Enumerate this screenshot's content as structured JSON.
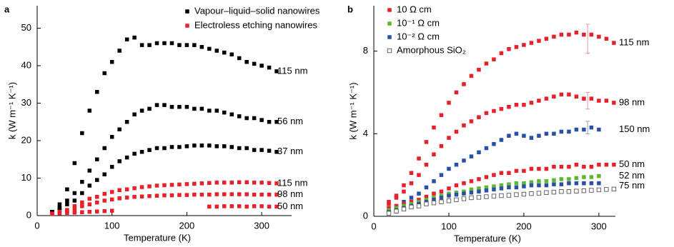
{
  "chart_data": [
    {
      "type": "scatter",
      "panel_label": "a",
      "xlabel": "Temperature (K)",
      "ylabel": "k (W m⁻¹ K⁻¹)",
      "xlim": [
        0,
        340
      ],
      "ylim": [
        0,
        56
      ],
      "xticks": [
        0,
        100,
        200,
        300
      ],
      "yticks": [
        0,
        10,
        20,
        30,
        40,
        50
      ],
      "legend": [
        {
          "name": "Vapour–liquid–solid nanowires",
          "color": "#000000",
          "marker": "square"
        },
        {
          "name": "Electroless etching nanowires",
          "color": "#e8202a",
          "marker": "square"
        }
      ],
      "series": [
        {
          "label": "115 nm",
          "color": "#000000",
          "marker": "square",
          "x": [
            20,
            30,
            40,
            50,
            60,
            70,
            80,
            90,
            100,
            110,
            120,
            130,
            140,
            150,
            160,
            170,
            180,
            190,
            200,
            210,
            220,
            230,
            240,
            250,
            260,
            270,
            280,
            290,
            300,
            310,
            320
          ],
          "values": [
            1,
            3,
            7,
            14,
            22,
            28,
            33,
            38,
            41,
            44,
            47,
            47.5,
            45.5,
            45.5,
            46,
            46,
            46,
            45.5,
            45.5,
            45.5,
            45,
            44.5,
            44,
            43.5,
            43,
            42,
            41,
            40.5,
            40,
            39.5,
            38.5
          ]
        },
        {
          "label": "56 nm",
          "color": "#000000",
          "marker": "square",
          "x": [
            20,
            30,
            40,
            50,
            60,
            70,
            80,
            90,
            100,
            110,
            120,
            130,
            140,
            150,
            160,
            170,
            180,
            190,
            200,
            210,
            220,
            230,
            240,
            250,
            260,
            270,
            280,
            290,
            300,
            310,
            320
          ],
          "values": [
            1,
            2,
            4,
            6,
            9,
            12,
            15,
            18,
            21,
            23,
            25,
            27,
            28,
            28.5,
            29.5,
            29.5,
            29,
            29,
            29,
            28.5,
            28.5,
            28,
            28,
            27.5,
            27,
            26.5,
            26,
            26,
            25.5,
            25,
            25
          ]
        },
        {
          "label": "37 nm",
          "color": "#000000",
          "marker": "square",
          "x": [
            20,
            30,
            40,
            50,
            60,
            70,
            80,
            90,
            100,
            110,
            120,
            130,
            140,
            150,
            160,
            170,
            180,
            190,
            200,
            210,
            220,
            230,
            240,
            250,
            260,
            270,
            280,
            290,
            300,
            310,
            320
          ],
          "values": [
            1,
            2,
            3,
            4,
            6,
            8,
            9.5,
            11,
            13,
            14.5,
            15.5,
            16.5,
            17,
            17.5,
            18,
            18,
            18.3,
            18.3,
            18.5,
            18.7,
            18.7,
            18.7,
            18.5,
            18.5,
            18.3,
            18,
            18,
            17.5,
            17.5,
            17.3,
            17
          ]
        },
        {
          "label": "115 nm",
          "color": "#e8202a",
          "marker": "square",
          "x": [
            20,
            30,
            40,
            50,
            60,
            70,
            80,
            90,
            100,
            110,
            120,
            130,
            140,
            150,
            160,
            170,
            180,
            190,
            200,
            210,
            220,
            230,
            240,
            250,
            260,
            270,
            280,
            290,
            300,
            310,
            320
          ],
          "values": [
            0.5,
            1,
            1.5,
            2.5,
            3.5,
            4.5,
            5,
            5.8,
            6.3,
            6.8,
            7,
            7.3,
            7.6,
            7.8,
            8,
            8.1,
            8.2,
            8.3,
            8.4,
            8.5,
            8.6,
            8.7,
            8.8,
            8.8,
            8.8,
            8.9,
            8.9,
            8.8,
            8.8,
            8.7,
            8.6
          ]
        },
        {
          "label": "98 nm",
          "color": "#e8202a",
          "marker": "square",
          "x": [
            20,
            30,
            40,
            50,
            60,
            70,
            80,
            90,
            100,
            110,
            120,
            130,
            140,
            150,
            160,
            170,
            180,
            190,
            200,
            210,
            220,
            230,
            240,
            250,
            260,
            270,
            280,
            290,
            300,
            310,
            320
          ],
          "values": [
            0.5,
            0.8,
            1.2,
            1.8,
            2.5,
            3,
            3.5,
            4,
            4.3,
            4.6,
            4.8,
            5,
            5.1,
            5.2,
            5.3,
            5.4,
            5.4,
            5.5,
            5.5,
            5.6,
            5.6,
            5.6,
            5.7,
            5.7,
            5.7,
            5.7,
            5.7,
            5.6,
            5.6,
            5.6,
            5.6
          ]
        },
        {
          "label": "50 nm",
          "color": "#e8202a",
          "marker": "square",
          "x": [
            20,
            30,
            40,
            50,
            60,
            70,
            80,
            90,
            100,
            230,
            240,
            250,
            260,
            270,
            280,
            290,
            300,
            310,
            320
          ],
          "values": [
            0.5,
            0.6,
            0.7,
            0.8,
            0.9,
            1,
            1.1,
            1.2,
            1.3,
            2.4,
            2.4,
            2.5,
            2.5,
            2.5,
            2.4,
            2.5,
            2.5,
            2.4,
            2.4
          ]
        }
      ]
    },
    {
      "type": "scatter",
      "panel_label": "b",
      "xlabel": "Temperature (K)",
      "ylabel": "k (W m⁻¹ K⁻¹)",
      "xlim": [
        0,
        322
      ],
      "ylim": [
        0,
        10.2
      ],
      "xticks": [
        0,
        100,
        200,
        300
      ],
      "yticks": [
        0,
        4,
        8
      ],
      "legend": [
        {
          "name": "10 Ω cm",
          "color": "#e8202a",
          "marker": "square"
        },
        {
          "name": "10⁻¹ Ω cm",
          "color": "#5cb82e",
          "marker": "square"
        },
        {
          "name": "10⁻² Ω cm",
          "color": "#2a4fa8",
          "marker": "square"
        },
        {
          "name": "Amorphous SiO₂",
          "color": "#555555",
          "marker": "open-square"
        }
      ],
      "series": [
        {
          "label": "115 nm",
          "color": "#e8202a",
          "marker": "square",
          "x": [
            20,
            30,
            40,
            50,
            60,
            70,
            80,
            90,
            100,
            110,
            120,
            130,
            140,
            150,
            160,
            170,
            180,
            190,
            200,
            210,
            220,
            230,
            240,
            250,
            260,
            270,
            280,
            290,
            300,
            310,
            320
          ],
          "values": [
            0.7,
            1,
            1.5,
            2.1,
            2.8,
            3.6,
            4.3,
            4.9,
            5.5,
            6,
            6.4,
            6.8,
            7.1,
            7.4,
            7.6,
            7.9,
            8.1,
            8.2,
            8.3,
            8.4,
            8.5,
            8.6,
            8.7,
            8.8,
            8.8,
            8.9,
            8.8,
            8.8,
            8.7,
            8.6,
            8.4
          ]
        },
        {
          "label": "98 nm",
          "color": "#e8202a",
          "marker": "square",
          "x": [
            20,
            30,
            40,
            50,
            60,
            70,
            80,
            90,
            100,
            110,
            120,
            130,
            140,
            150,
            160,
            170,
            180,
            190,
            200,
            210,
            220,
            230,
            240,
            250,
            260,
            270,
            280,
            290,
            300,
            310,
            320
          ],
          "values": [
            0.6,
            0.9,
            1.2,
            1.6,
            2,
            2.5,
            3,
            3.4,
            3.8,
            4.1,
            4.4,
            4.6,
            4.8,
            5,
            5.1,
            5.2,
            5.3,
            5.4,
            5.4,
            5.5,
            5.6,
            5.7,
            5.8,
            5.9,
            5.9,
            5.8,
            5.7,
            5.7,
            5.6,
            5.6,
            5.5
          ]
        },
        {
          "label": "150 nm",
          "color": "#2a4fa8",
          "marker": "square",
          "x": [
            20,
            30,
            40,
            50,
            60,
            70,
            80,
            90,
            100,
            110,
            120,
            130,
            140,
            150,
            160,
            170,
            180,
            190,
            200,
            210,
            220,
            230,
            240,
            250,
            260,
            270,
            280,
            290,
            300
          ],
          "values": [
            0.3,
            0.5,
            0.7,
            0.9,
            1.1,
            1.4,
            1.7,
            2,
            2.3,
            2.5,
            2.7,
            2.9,
            3.1,
            3.3,
            3.5,
            3.7,
            3.9,
            4,
            3.9,
            3.8,
            3.9,
            4,
            4,
            4.1,
            4.1,
            4.2,
            4.2,
            4.3,
            4.2
          ]
        },
        {
          "label": "50 nm",
          "color": "#e8202a",
          "marker": "square",
          "x": [
            20,
            30,
            40,
            50,
            60,
            70,
            80,
            90,
            100,
            110,
            120,
            130,
            140,
            150,
            160,
            170,
            180,
            190,
            200,
            210,
            220,
            230,
            240,
            250,
            260,
            270,
            280,
            290,
            300,
            310,
            320
          ],
          "values": [
            0.4,
            0.5,
            0.6,
            0.7,
            0.8,
            0.95,
            1.1,
            1.2,
            1.35,
            1.5,
            1.6,
            1.7,
            1.8,
            1.9,
            2,
            2.1,
            2.1,
            2.2,
            2.2,
            2.3,
            2.3,
            2.3,
            2.4,
            2.4,
            2.4,
            2.5,
            2.4,
            2.4,
            2.5,
            2.5,
            2.5
          ]
        },
        {
          "label": "52 nm",
          "color": "#5cb82e",
          "marker": "square",
          "x": [
            20,
            30,
            40,
            50,
            60,
            70,
            80,
            90,
            100,
            110,
            120,
            130,
            140,
            150,
            160,
            170,
            180,
            190,
            200,
            210,
            220,
            230,
            240,
            250,
            260,
            270,
            280,
            290,
            300
          ],
          "values": [
            0.3,
            0.4,
            0.5,
            0.6,
            0.7,
            0.8,
            0.9,
            1,
            1.1,
            1.15,
            1.2,
            1.3,
            1.35,
            1.4,
            1.45,
            1.5,
            1.55,
            1.6,
            1.6,
            1.65,
            1.7,
            1.7,
            1.75,
            1.8,
            1.8,
            1.85,
            1.9,
            1.9,
            1.95
          ]
        },
        {
          "label": "75 nm",
          "color": "#2a4fa8",
          "marker": "square",
          "x": [
            20,
            30,
            40,
            50,
            60,
            70,
            80,
            90,
            100,
            110,
            120,
            130,
            140,
            150,
            160,
            170,
            180,
            190,
            200,
            210,
            220,
            230,
            240,
            250,
            260,
            270,
            280,
            290,
            300
          ],
          "values": [
            0.2,
            0.3,
            0.4,
            0.5,
            0.6,
            0.7,
            0.8,
            0.9,
            1,
            1.05,
            1.1,
            1.15,
            1.2,
            1.25,
            1.3,
            1.35,
            1.4,
            1.4,
            1.45,
            1.5,
            1.5,
            1.5,
            1.55,
            1.55,
            1.6,
            1.6,
            1.6,
            1.6,
            1.6
          ]
        },
        {
          "color": "#555555",
          "marker": "open-square",
          "x": [
            20,
            30,
            40,
            50,
            60,
            70,
            80,
            90,
            100,
            110,
            120,
            130,
            140,
            150,
            160,
            170,
            180,
            190,
            200,
            210,
            220,
            230,
            240,
            250,
            260,
            270,
            280,
            290,
            300,
            310,
            320
          ],
          "values": [
            0.15,
            0.25,
            0.35,
            0.45,
            0.5,
            0.6,
            0.65,
            0.7,
            0.75,
            0.8,
            0.85,
            0.9,
            0.92,
            0.95,
            0.98,
            1,
            1.02,
            1.05,
            1.07,
            1.1,
            1.12,
            1.15,
            1.17,
            1.2,
            1.2,
            1.22,
            1.24,
            1.26,
            1.28,
            1.3,
            1.32
          ]
        }
      ],
      "error_bars": [
        {
          "x": 285,
          "value": 8.6,
          "error": 0.7,
          "color": "#eb9a9a"
        },
        {
          "x": 285,
          "value": 5.6,
          "error": 0.4,
          "color": "#eb9a9a"
        },
        {
          "x": 285,
          "value": 4.3,
          "error": 0.3,
          "color": "#8a9ed0"
        }
      ]
    }
  ]
}
